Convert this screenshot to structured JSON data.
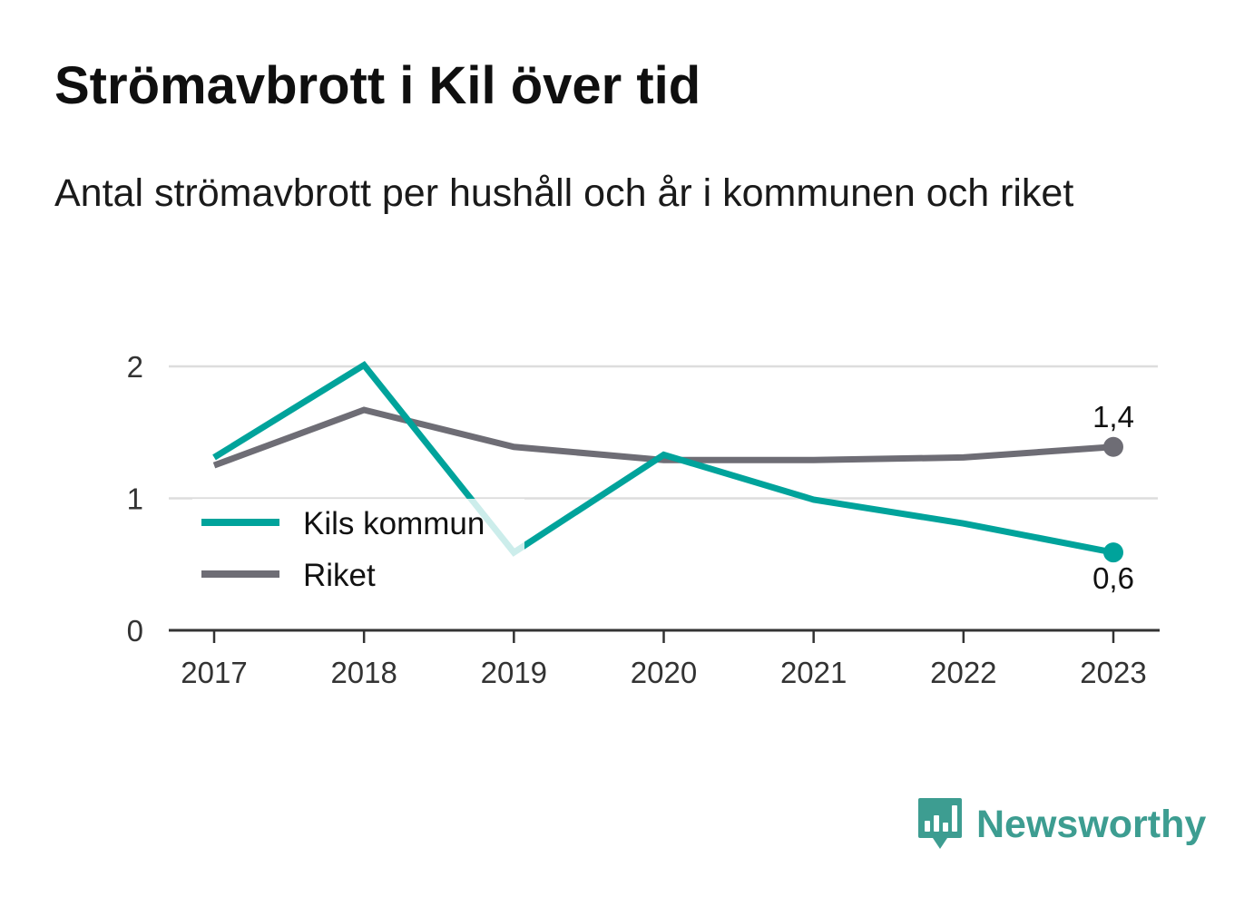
{
  "chart_data": {
    "type": "line",
    "title": "Strömavbrott i Kil över tid",
    "subtitle": "Antal strömavbrott per hushåll och år i kommunen och riket",
    "x": [
      "2017",
      "2018",
      "2019",
      "2020",
      "2021",
      "2022",
      "2023"
    ],
    "series": [
      {
        "name": "Kils kommun",
        "color": "#00a39b",
        "values": [
          1.31,
          2.01,
          0.59,
          1.33,
          0.99,
          0.81,
          0.59
        ],
        "end_label": "0,6"
      },
      {
        "name": "Riket",
        "color": "#6e6d75",
        "values": [
          1.25,
          1.67,
          1.39,
          1.29,
          1.29,
          1.31,
          1.39
        ],
        "end_label": "1,4"
      }
    ],
    "ylim": [
      0,
      2
    ],
    "yticks": [
      {
        "value": 0,
        "label": "0"
      },
      {
        "value": 1,
        "label": "1"
      },
      {
        "value": 2,
        "label": "2"
      }
    ],
    "grid": true,
    "legend_position": "bottom-left"
  },
  "brand": {
    "name": "Newsworthy",
    "color": "#3d9d91",
    "icon": "speech-bubble-bar-chart-icon"
  }
}
